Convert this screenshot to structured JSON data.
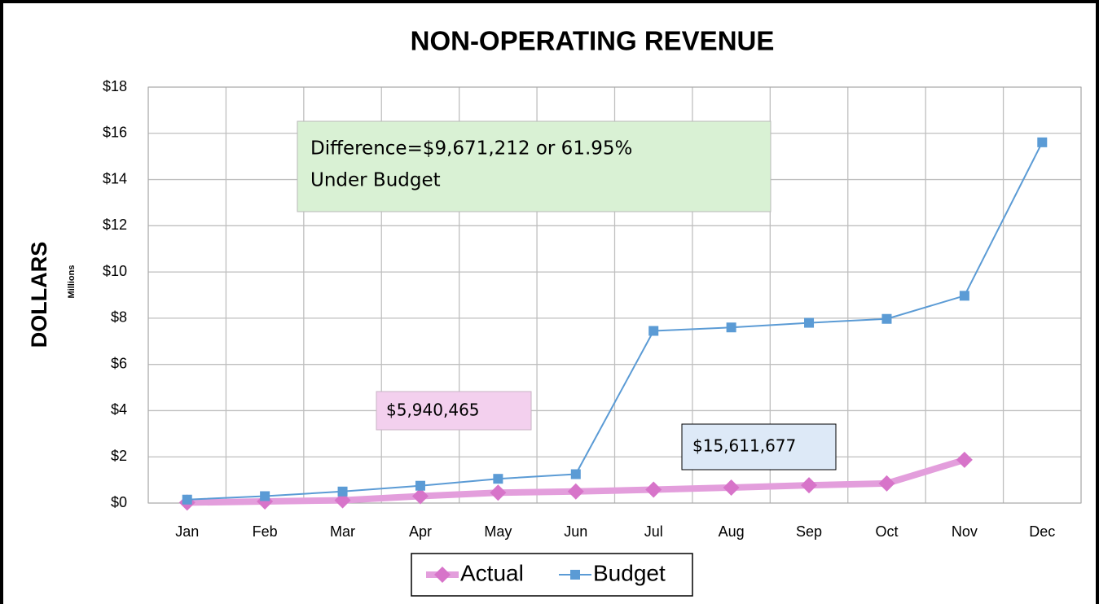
{
  "chart_data": {
    "type": "line",
    "title": "NON-OPERATING REVENUE",
    "y_label": "DOLLARS",
    "y_unit_label": "Millions",
    "categories": [
      "Jan",
      "Feb",
      "Mar",
      "Apr",
      "May",
      "Jun",
      "Jul",
      "Aug",
      "Sep",
      "Oct",
      "Nov",
      "Dec"
    ],
    "series": [
      {
        "name": "Actual",
        "color": "#e39edc",
        "marker_color": "#d774c9",
        "marker": "diamond",
        "values": [
          0.02,
          0.07,
          0.12,
          0.3,
          0.45,
          0.5,
          0.58,
          0.67,
          0.77,
          0.85,
          1.87,
          null
        ]
      },
      {
        "name": "Budget",
        "color": "#5b9bd5",
        "marker_color": "#5b9bd5",
        "marker": "square",
        "values": [
          0.15,
          0.3,
          0.5,
          0.75,
          1.05,
          1.25,
          7.45,
          7.6,
          7.8,
          7.97,
          8.97,
          15.61
        ]
      }
    ],
    "ylim": [
      0,
      18
    ],
    "yticks": [
      {
        "value": 0,
        "label": "$0"
      },
      {
        "value": 2,
        "label": "$2"
      },
      {
        "value": 4,
        "label": "$4"
      },
      {
        "value": 6,
        "label": "$6"
      },
      {
        "value": 8,
        "label": "$8"
      },
      {
        "value": 10,
        "label": "$10"
      },
      {
        "value": 12,
        "label": "$12"
      },
      {
        "value": 14,
        "label": "$14"
      },
      {
        "value": 16,
        "label": "$16"
      },
      {
        "value": 18,
        "label": "$18"
      }
    ],
    "grid": true,
    "legend": "bottom",
    "annotations": [
      "Difference=$9,671,212 or 61.95%",
      "Under Budget",
      "$5,940,465",
      "$15,611,677"
    ]
  }
}
